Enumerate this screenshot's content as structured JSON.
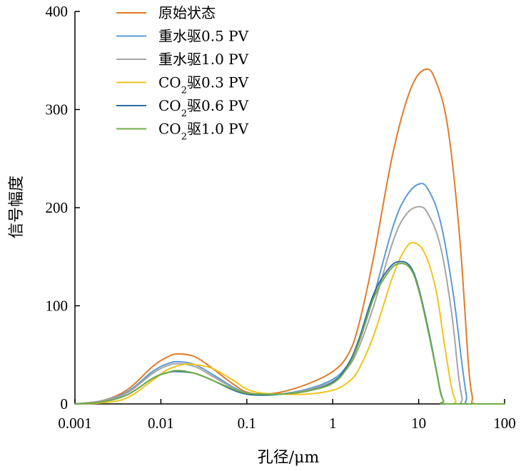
{
  "chart_data": {
    "type": "line",
    "title": "",
    "xlabel": "孔径/μm",
    "ylabel": "信号幅度",
    "xscale": "log",
    "xlim": [
      0.001,
      100
    ],
    "ylim": [
      0,
      400
    ],
    "xticks": [
      {
        "value": 0.001,
        "label": "0.001"
      },
      {
        "value": 0.01,
        "label": "0.01"
      },
      {
        "value": 0.1,
        "label": "0.1"
      },
      {
        "value": 1,
        "label": "1"
      },
      {
        "value": 10,
        "label": "10"
      },
      {
        "value": 100,
        "label": "100"
      }
    ],
    "yticks": [
      {
        "value": 0,
        "label": "0"
      },
      {
        "value": 100,
        "label": "100"
      },
      {
        "value": 200,
        "label": "200"
      },
      {
        "value": 300,
        "label": "300"
      },
      {
        "value": 400,
        "label": "400"
      }
    ],
    "grid": false,
    "legend_position": "top-left",
    "series": [
      {
        "name": "原始状态",
        "legend_parts": [
          {
            "text": "原始状态"
          }
        ],
        "color": "#E07B2A",
        "x": [
          0.001,
          0.002,
          0.004,
          0.008,
          0.012,
          0.016,
          0.025,
          0.04,
          0.07,
          0.1,
          0.15,
          0.25,
          0.5,
          1,
          1.5,
          2,
          3,
          5,
          8,
          12,
          16,
          22,
          30,
          38,
          42,
          45,
          100
        ],
        "y": [
          0,
          3,
          14,
          38,
          48,
          51,
          48,
          36,
          20,
          12,
          10,
          12,
          20,
          33,
          50,
          80,
          150,
          255,
          320,
          341,
          328,
          280,
          170,
          40,
          8,
          0,
          0
        ]
      },
      {
        "name": "重水驱0.5 PV",
        "legend_parts": [
          {
            "text": "重水驱0.5 PV"
          }
        ],
        "color": "#5B9BD5",
        "x": [
          0.001,
          0.002,
          0.004,
          0.008,
          0.012,
          0.016,
          0.025,
          0.04,
          0.07,
          0.1,
          0.15,
          0.25,
          0.5,
          1,
          1.5,
          2,
          3,
          5,
          7,
          10,
          13,
          18,
          25,
          32,
          36,
          38,
          100
        ],
        "y": [
          0,
          3,
          12,
          33,
          41,
          43,
          40,
          30,
          17,
          11,
          9,
          10,
          15,
          25,
          40,
          62,
          110,
          180,
          210,
          224,
          218,
          185,
          115,
          40,
          8,
          0,
          0
        ]
      },
      {
        "name": "重水驱1.0 PV",
        "legend_parts": [
          {
            "text": "重水驱1.0 PV"
          }
        ],
        "color": "#A5A5A5",
        "x": [
          0.001,
          0.002,
          0.004,
          0.008,
          0.012,
          0.016,
          0.025,
          0.04,
          0.07,
          0.1,
          0.15,
          0.25,
          0.5,
          1,
          1.5,
          2,
          3,
          5,
          7,
          10,
          13,
          18,
          24,
          29,
          32,
          34,
          100
        ],
        "y": [
          0,
          3,
          11,
          31,
          39,
          41,
          38,
          28,
          16,
          10,
          9,
          10,
          14,
          23,
          37,
          57,
          100,
          165,
          192,
          201,
          193,
          160,
          95,
          30,
          6,
          0,
          0
        ]
      },
      {
        "name": "CO2驱0.3 PV",
        "legend_parts": [
          {
            "text": "CO"
          },
          {
            "text": "2",
            "sub": true
          },
          {
            "text": "驱0.3 PV"
          }
        ],
        "color": "#F0C419",
        "x": [
          0.001,
          0.002,
          0.004,
          0.008,
          0.012,
          0.018,
          0.025,
          0.04,
          0.07,
          0.1,
          0.15,
          0.25,
          0.5,
          1,
          1.5,
          2,
          3,
          5,
          7,
          9,
          12,
          16,
          20,
          24,
          27,
          29,
          100
        ],
        "y": [
          0,
          1,
          6,
          24,
          35,
          40,
          40,
          36,
          24,
          15,
          11,
          10,
          10,
          14,
          22,
          35,
          70,
          130,
          158,
          164,
          152,
          115,
          60,
          18,
          3,
          0,
          0
        ]
      },
      {
        "name": "CO2驱0.6 PV",
        "legend_parts": [
          {
            "text": "CO"
          },
          {
            "text": "2",
            "sub": true
          },
          {
            "text": "驱0.6 PV"
          }
        ],
        "color": "#2E6BA5",
        "x": [
          0.001,
          0.002,
          0.004,
          0.008,
          0.012,
          0.016,
          0.025,
          0.04,
          0.07,
          0.1,
          0.15,
          0.25,
          0.5,
          1,
          1.5,
          2,
          3,
          4.5,
          6,
          8,
          10,
          13,
          16,
          18,
          19.5,
          20.5,
          100
        ],
        "y": [
          0,
          2,
          9,
          26,
          32,
          33,
          31,
          24,
          14,
          10,
          9,
          10,
          13,
          22,
          40,
          65,
          112,
          138,
          145,
          140,
          118,
          75,
          35,
          12,
          3,
          0,
          0
        ]
      },
      {
        "name": "CO2驱1.0 PV",
        "legend_parts": [
          {
            "text": "CO"
          },
          {
            "text": "2",
            "sub": true
          },
          {
            "text": "驱1.0 PV"
          }
        ],
        "color": "#70AD47",
        "x": [
          0.001,
          0.002,
          0.004,
          0.008,
          0.012,
          0.016,
          0.025,
          0.04,
          0.07,
          0.1,
          0.15,
          0.25,
          0.5,
          1,
          1.5,
          2,
          3,
          4.5,
          6,
          8,
          10,
          13,
          16,
          18,
          19.5,
          20.5,
          100
        ],
        "y": [
          0,
          2,
          9,
          26,
          32,
          34,
          31,
          24,
          15,
          11,
          10,
          10,
          13,
          21,
          38,
          62,
          108,
          135,
          143,
          138,
          116,
          73,
          34,
          11,
          3,
          0,
          0
        ]
      }
    ]
  }
}
